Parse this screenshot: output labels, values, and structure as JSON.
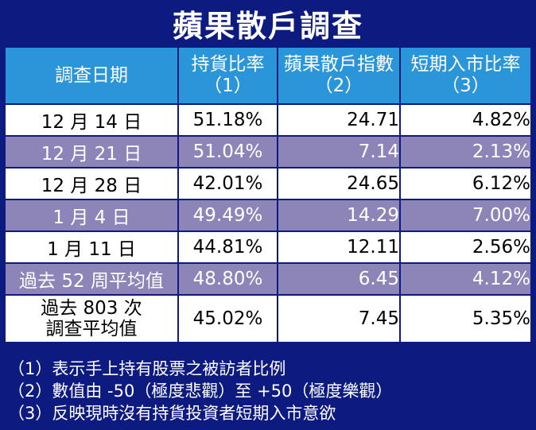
{
  "title": "蘋果散戶調查",
  "headers": [
    {
      "line1": "調查日期",
      "line2": ""
    },
    {
      "line1": "持貨比率",
      "line2": "（1）"
    },
    {
      "line1": "蘋果散戶指數",
      "line2": "（2）"
    },
    {
      "line1": "短期入市比率",
      "line2": "（3）"
    }
  ],
  "rows": [
    {
      "date": "12 月 14 日",
      "holding": "51.18%",
      "index": "24.71",
      "ratio": "4.82%"
    },
    {
      "date": "12 月 21 日",
      "holding": "51.04%",
      "index": "7.14",
      "ratio": "2.13%"
    },
    {
      "date": "12 月 28 日",
      "holding": "42.01%",
      "index": "24.65",
      "ratio": "6.12%"
    },
    {
      "date": "1 月 4 日",
      "holding": "49.49%",
      "index": "14.29",
      "ratio": "7.00%"
    },
    {
      "date": "1 月 11 日",
      "holding": "44.81%",
      "index": "12.11",
      "ratio": "2.56%"
    },
    {
      "date": "過去 52 周平均值",
      "holding": "48.80%",
      "index": "6.45",
      "ratio": "4.12%"
    },
    {
      "date_line1": "過去 803 次",
      "date_line2": "調查平均值",
      "holding": "45.02%",
      "index": "7.45",
      "ratio": "5.35%"
    }
  ],
  "notes": [
    "（1）表示手上持有股票之被訪者比例",
    "（2）數值由 -50（極度悲觀）至 +50（極度樂觀）",
    "（3）反映現時沒有持貨投資者短期入市意欲"
  ],
  "colors": {
    "background": "#0d1a80",
    "header": "#2a95d8",
    "row_alt": "#8d85b8",
    "row": "#ffffff"
  }
}
